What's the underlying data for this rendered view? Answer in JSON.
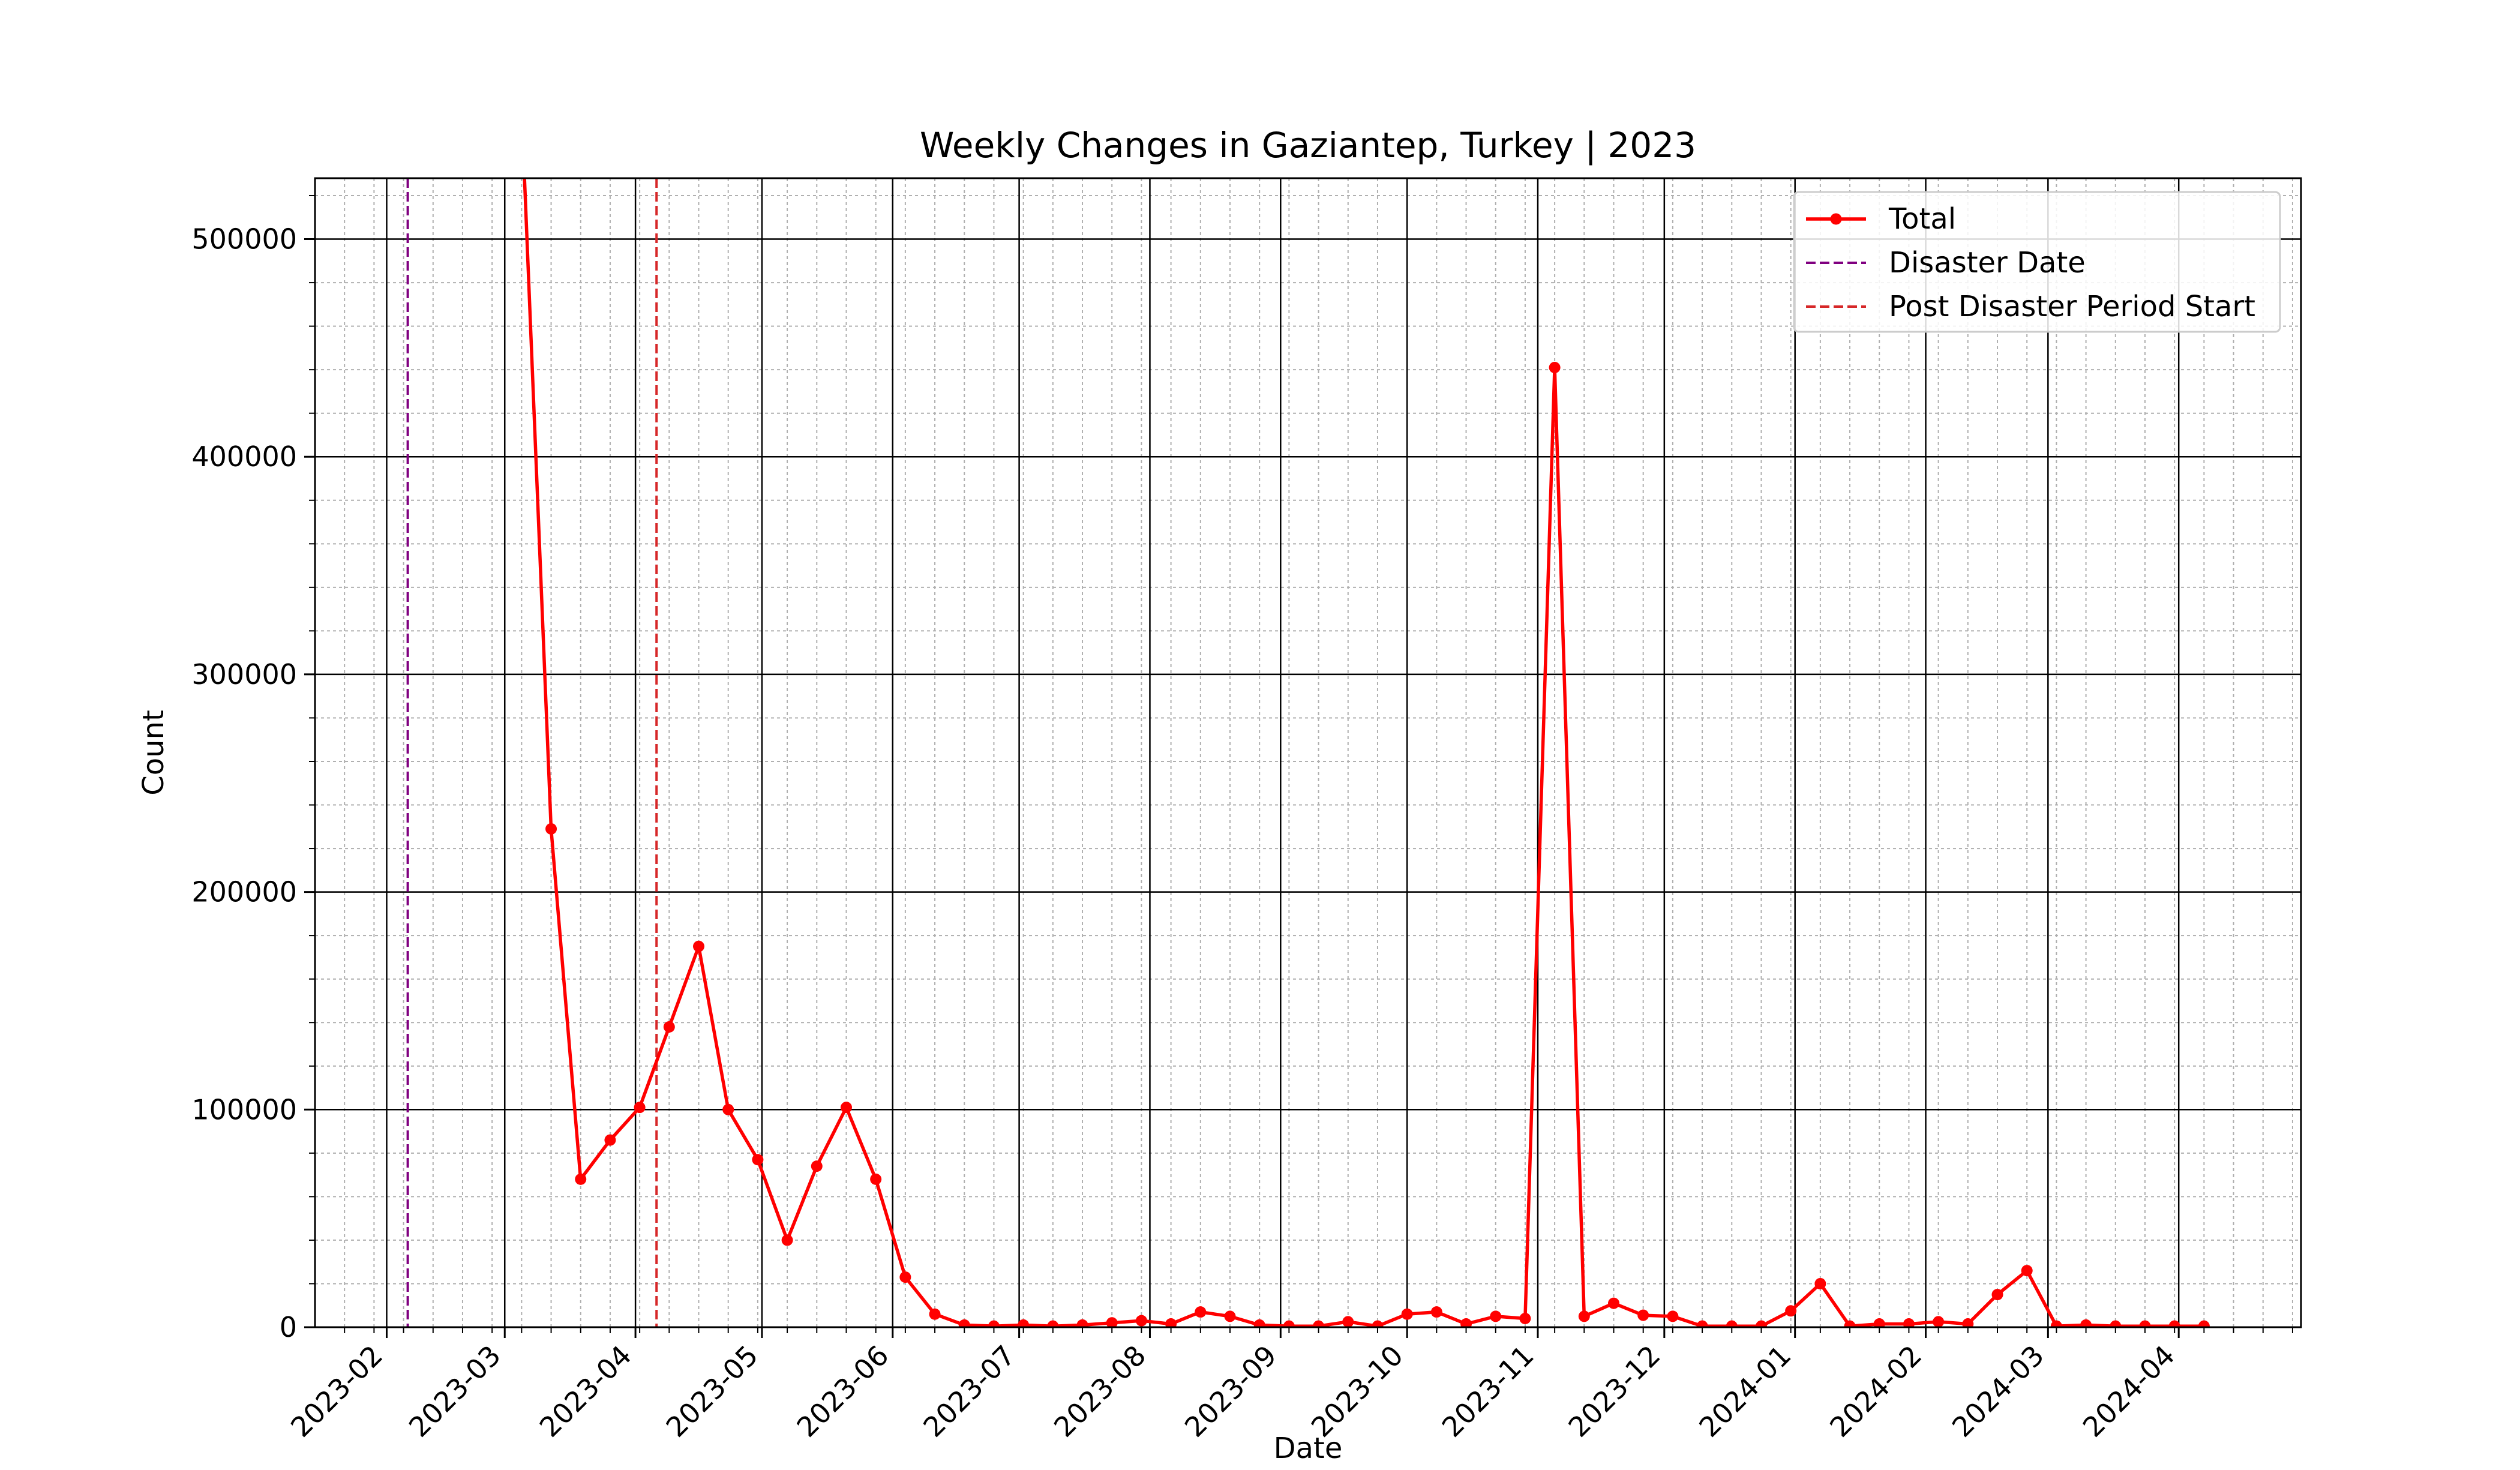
{
  "chart_data": {
    "type": "line",
    "title": "Weekly Changes in Gaziantep, Turkey | 2023",
    "xlabel": "Date",
    "ylabel": "Count",
    "ylim": [
      0,
      528000
    ],
    "xlim": [
      "2023-01-15",
      "2024-04-30"
    ],
    "grid": true,
    "legend_placement": "upper right",
    "x_tick_labels": [
      "2023-02",
      "2023-03",
      "2023-04",
      "2023-05",
      "2023-06",
      "2023-07",
      "2023-08",
      "2023-09",
      "2023-10",
      "2023-11",
      "2023-12",
      "2024-01",
      "2024-02",
      "2024-03",
      "2024-04"
    ],
    "y_tick_labels": [
      "0",
      "100000",
      "200000",
      "300000",
      "400000",
      "500000"
    ],
    "series": [
      {
        "name": "Total",
        "color": "#ff0000",
        "style": "solid-with-markers",
        "x": [
          "2023-03-05",
          "2023-03-12",
          "2023-03-19",
          "2023-03-26",
          "2023-04-02",
          "2023-04-09",
          "2023-04-16",
          "2023-04-23",
          "2023-04-30",
          "2023-05-07",
          "2023-05-14",
          "2023-05-21",
          "2023-05-28",
          "2023-06-04",
          "2023-06-11",
          "2023-06-18",
          "2023-06-25",
          "2023-07-02",
          "2023-07-09",
          "2023-07-16",
          "2023-07-23",
          "2023-07-30",
          "2023-08-06",
          "2023-08-13",
          "2023-08-20",
          "2023-08-27",
          "2023-09-03",
          "2023-09-10",
          "2023-09-17",
          "2023-09-24",
          "2023-10-01",
          "2023-10-08",
          "2023-10-15",
          "2023-10-22",
          "2023-10-29",
          "2023-11-05",
          "2023-11-12",
          "2023-11-19",
          "2023-11-26",
          "2023-12-03",
          "2023-12-10",
          "2023-12-17",
          "2023-12-24",
          "2023-12-31",
          "2024-01-07",
          "2024-01-14",
          "2024-01-21",
          "2024-01-28",
          "2024-02-04",
          "2024-02-11",
          "2024-02-18",
          "2024-02-25",
          "2024-03-03",
          "2024-03-10",
          "2024-03-17",
          "2024-03-24",
          "2024-03-31",
          "2024-04-07"
        ],
        "values": [
          560000,
          229000,
          68000,
          86000,
          101000,
          138000,
          175000,
          100000,
          77000,
          40000,
          74000,
          101000,
          68000,
          23000,
          6000,
          1000,
          500,
          1000,
          500,
          1000,
          2000,
          3000,
          1500,
          7000,
          5000,
          1000,
          500,
          500,
          2500,
          500,
          6000,
          7000,
          1500,
          5000,
          4000,
          441000,
          5000,
          11000,
          5500,
          5000,
          500,
          500,
          500,
          7500,
          20000,
          500,
          1500,
          1500,
          2500,
          1500,
          15000,
          26000,
          500,
          1000,
          500,
          500,
          500,
          500
        ]
      }
    ],
    "reference_lines": [
      {
        "name": "Disaster Date",
        "date": "2023-02-06",
        "color": "#800080",
        "style": "dashed"
      },
      {
        "name": "Post Disaster Period Start",
        "date": "2023-04-06",
        "color": "#d62728",
        "style": "dashed"
      }
    ]
  }
}
